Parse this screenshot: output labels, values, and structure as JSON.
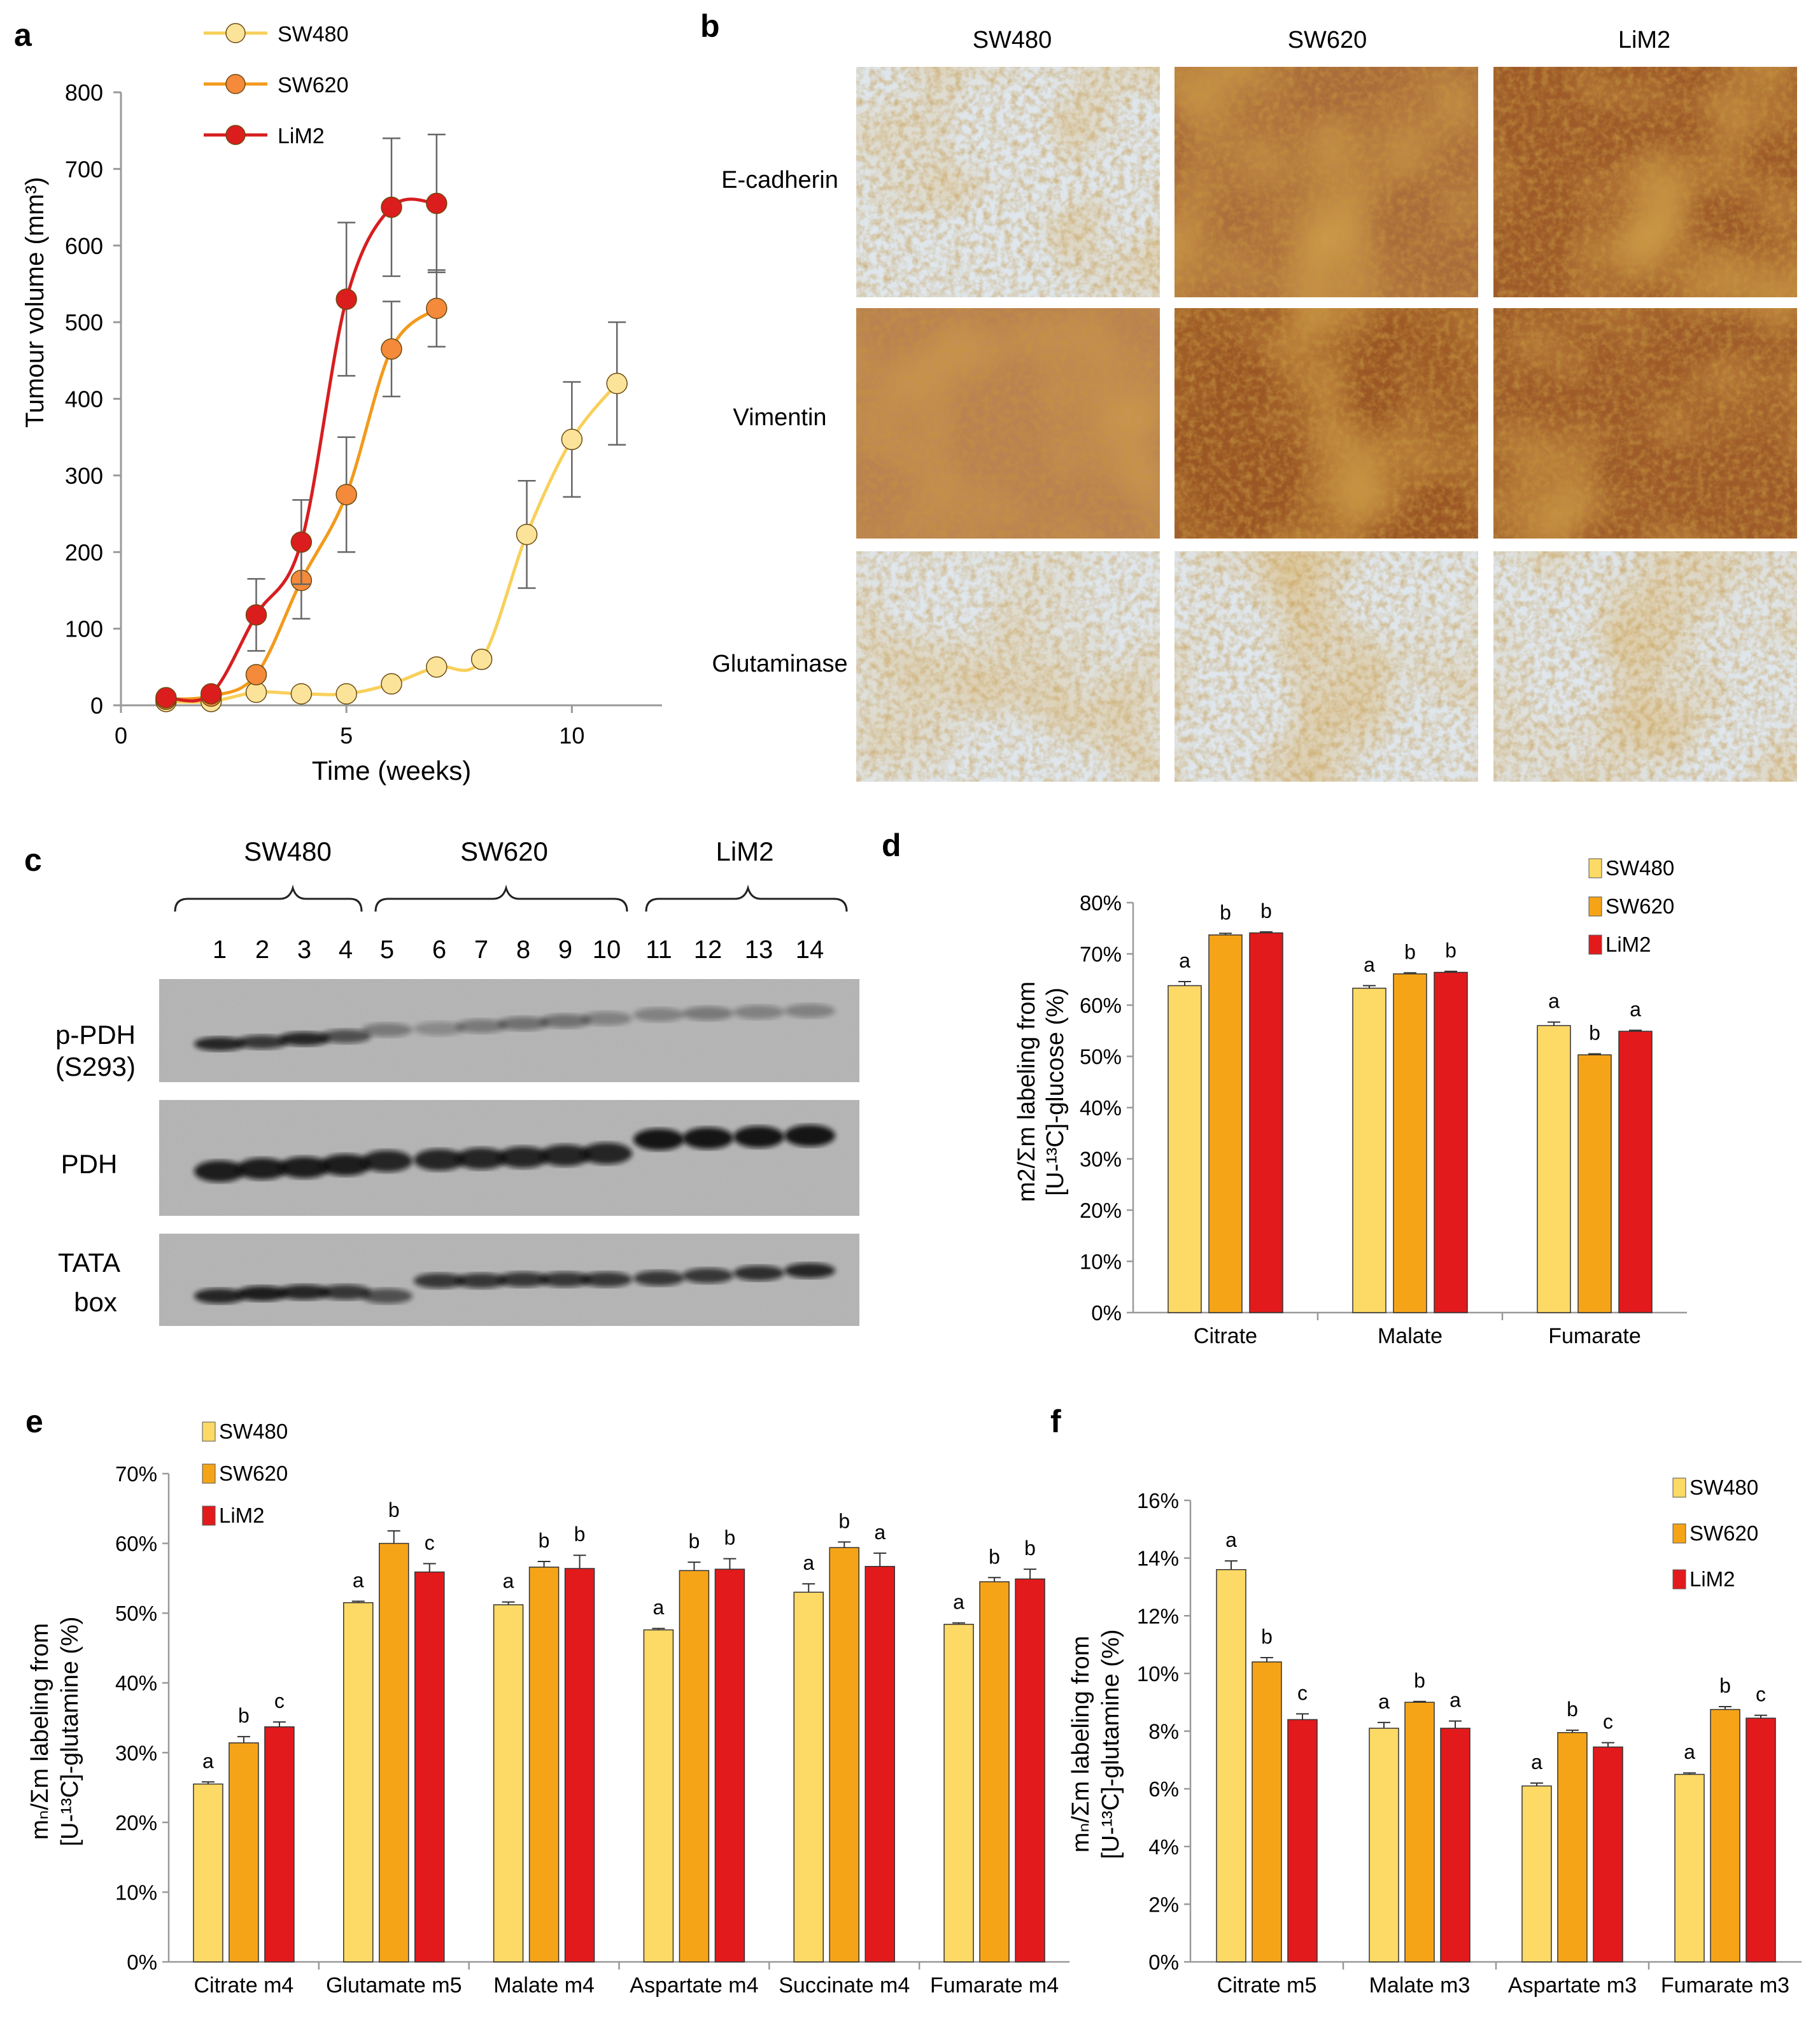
{
  "colors": {
    "SW480": "#FDD966",
    "SW620": "#F6A417",
    "LiM2": "#E31A1C",
    "SW480_line": "#F8D05A",
    "SW620_line": "#F29A1C",
    "LiM2_line": "#D71E20",
    "SW480_marker": "#FCE39A",
    "SW620_marker": "#F48A3A",
    "LiM2_marker": "#DC1D1D"
  },
  "panels": {
    "a": {
      "letter": "a"
    },
    "b": {
      "letter": "b",
      "columns": [
        "SW480",
        "SW620",
        "LiM2"
      ],
      "rows": [
        "E-cadherin",
        "Vimentin",
        "Glutaminase"
      ]
    },
    "c": {
      "letter": "c",
      "groups": [
        "SW480",
        "SW620",
        "LiM2"
      ],
      "lanes": [
        "1",
        "2",
        "3",
        "4",
        "5",
        "6",
        "7",
        "8",
        "9",
        "10",
        "11",
        "12",
        "13",
        "14"
      ],
      "blots": [
        {
          "label1": "p-PDH",
          "label2": "(S293)"
        },
        {
          "label1": "PDH",
          "label2": ""
        },
        {
          "label1": "TATA",
          "label2": "box"
        }
      ]
    },
    "d": {
      "letter": "d"
    },
    "e": {
      "letter": "e"
    },
    "f": {
      "letter": "f"
    }
  },
  "chart_data": [
    {
      "id": "a",
      "type": "line",
      "title": "",
      "xlabel": "Time (weeks)",
      "ylabel": "Tumour volume (mm³)",
      "xlim": [
        0,
        12
      ],
      "ylim": [
        0,
        800
      ],
      "xticks": [
        0,
        5,
        10
      ],
      "yticks": [
        0,
        100,
        200,
        300,
        400,
        500,
        600,
        700,
        800
      ],
      "legend_position": "top-left",
      "series": [
        {
          "name": "SW480",
          "x": [
            1,
            2,
            3,
            4,
            5,
            6,
            7,
            8,
            9,
            10,
            11
          ],
          "values": [
            5,
            5,
            17,
            15,
            15,
            28,
            50,
            60,
            223,
            347,
            420
          ],
          "errors": [
            0,
            0,
            0,
            0,
            0,
            0,
            0,
            0,
            70,
            75,
            80
          ]
        },
        {
          "name": "SW620",
          "x": [
            1,
            2,
            3,
            4,
            5,
            6,
            7
          ],
          "values": [
            8,
            12,
            40,
            163,
            275,
            465,
            518
          ],
          "errors": [
            0,
            0,
            0,
            50,
            75,
            62,
            50
          ]
        },
        {
          "name": "LiM2",
          "x": [
            1,
            2,
            3,
            4,
            5,
            6,
            7
          ],
          "values": [
            10,
            15,
            118,
            213,
            530,
            650,
            655
          ],
          "errors": [
            0,
            0,
            47,
            55,
            100,
            90,
            90
          ]
        }
      ]
    },
    {
      "id": "d",
      "type": "bar",
      "title": "",
      "xlabel": "",
      "ylabel_line1": "m2/Σm labeling from",
      "ylabel_line2": "[U-¹³C]-glucose (%)",
      "ylim": [
        0,
        80
      ],
      "yticks": [
        "0%",
        "10%",
        "20%",
        "30%",
        "40%",
        "50%",
        "60%",
        "70%",
        "80%"
      ],
      "legend_position": "top-right",
      "categories": [
        "Citrate",
        "Malate",
        "Fumarate"
      ],
      "series": [
        {
          "name": "SW480",
          "values": [
            63.8,
            63.3,
            56.0
          ],
          "errors": [
            0.8,
            0.5,
            0.7
          ],
          "letters": [
            "a",
            "a",
            "a"
          ]
        },
        {
          "name": "SW620",
          "values": [
            73.7,
            66.1,
            50.3
          ],
          "errors": [
            0.3,
            0.2,
            0.2
          ],
          "letters": [
            "b",
            "b",
            "b"
          ]
        },
        {
          "name": "LiM2",
          "values": [
            74.1,
            66.4,
            54.9
          ],
          "errors": [
            0.2,
            0.2,
            0.2
          ],
          "letters": [
            "b",
            "b",
            "a"
          ]
        }
      ]
    },
    {
      "id": "e",
      "type": "bar",
      "title": "",
      "xlabel": "",
      "ylabel_line1": "mₙ/Σm labeling from",
      "ylabel_line2": "[U-¹³C]-glutamine  (%)",
      "ylim": [
        0,
        70
      ],
      "yticks": [
        "0%",
        "10%",
        "20%",
        "30%",
        "40%",
        "50%",
        "60%",
        "70%"
      ],
      "legend_position": "top-left",
      "categories": [
        "Citrate  m4",
        "Glutamate m5",
        "Malate m4",
        "Aspartate m4",
        "Succinate m4",
        "Fumarate m4"
      ],
      "series": [
        {
          "name": "SW480",
          "values": [
            25.5,
            51.5,
            51.2,
            47.6,
            53.0,
            48.4
          ],
          "errors": [
            0.3,
            0.2,
            0.4,
            0.2,
            1.2,
            0.2
          ],
          "letters": [
            "a",
            "a",
            "a",
            "a",
            "a",
            "a"
          ]
        },
        {
          "name": "SW620",
          "values": [
            31.4,
            60.0,
            56.6,
            56.1,
            59.4,
            54.5
          ],
          "errors": [
            0.9,
            1.8,
            0.8,
            1.2,
            0.8,
            0.6
          ],
          "letters": [
            "b",
            "b",
            "b",
            "b",
            "b",
            "b"
          ]
        },
        {
          "name": "LiM2",
          "values": [
            33.7,
            55.9,
            56.4,
            56.3,
            56.7,
            54.9
          ],
          "errors": [
            0.7,
            1.2,
            1.9,
            1.5,
            1.9,
            1.4
          ],
          "letters": [
            "c",
            "c",
            "b",
            "b",
            "a",
            "b"
          ]
        }
      ]
    },
    {
      "id": "f",
      "type": "bar",
      "title": "",
      "xlabel": "",
      "ylabel_line1": "mₙ/Σm labeling from",
      "ylabel_line2": "[U-¹³C]-glutamine  (%)",
      "ylim": [
        0,
        16
      ],
      "yticks": [
        "0%",
        "2%",
        "4%",
        "6%",
        "8%",
        "10%",
        "12%",
        "14%",
        "16%"
      ],
      "legend_position": "top-right",
      "categories": [
        "Citrate m5",
        "Malate m3",
        "Aspartate m3",
        "Fumarate m3"
      ],
      "series": [
        {
          "name": "SW480",
          "values": [
            13.6,
            8.1,
            6.1,
            6.5
          ],
          "errors": [
            0.3,
            0.2,
            0.1,
            0.05
          ],
          "letters": [
            "a",
            "a",
            "a",
            "a"
          ]
        },
        {
          "name": "SW620",
          "values": [
            10.4,
            9.0,
            7.95,
            8.75
          ],
          "errors": [
            0.15,
            0.03,
            0.08,
            0.1
          ],
          "letters": [
            "b",
            "b",
            "b",
            "b"
          ]
        },
        {
          "name": "LiM2",
          "values": [
            8.4,
            8.1,
            7.45,
            8.45
          ],
          "errors": [
            0.2,
            0.25,
            0.15,
            0.1
          ],
          "letters": [
            "c",
            "a",
            "c",
            "c"
          ]
        }
      ]
    }
  ]
}
